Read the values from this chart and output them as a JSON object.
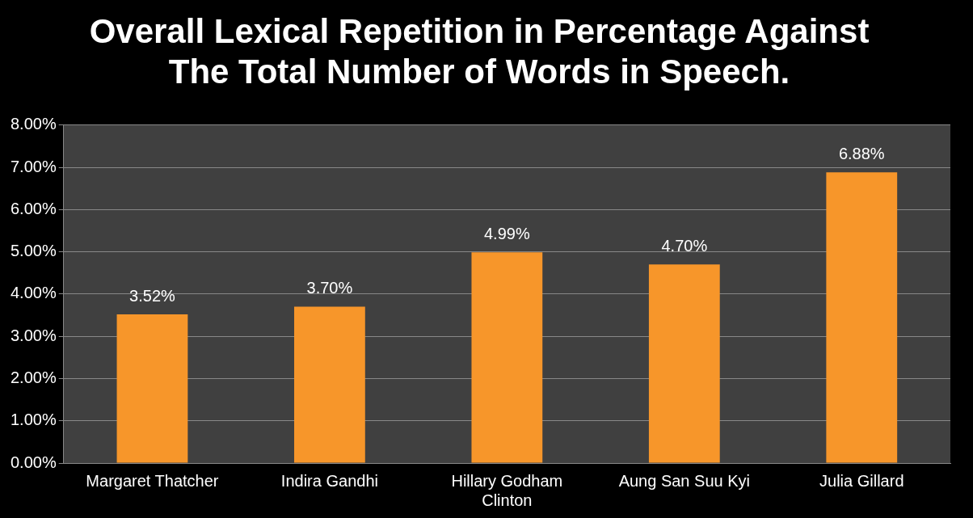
{
  "chart_data": {
    "type": "bar",
    "title": "Overall Lexical Repetition in Percentage Against The Total Number of Words in Speech.",
    "categories": [
      "Margaret Thatcher",
      "Indira Gandhi",
      "Hillary Godham Clinton",
      "Aung San Suu Kyi",
      "Julia Gillard"
    ],
    "values": [
      3.52,
      3.7,
      4.99,
      4.7,
      6.88
    ],
    "value_labels": [
      "3.52%",
      "3.70%",
      "4.99%",
      "4.70%",
      "6.88%"
    ],
    "color": "#f7962a",
    "ylim": [
      0,
      8
    ],
    "yticks": [
      {
        "value": 0,
        "label": "0.00%"
      },
      {
        "value": 1,
        "label": "1.00%"
      },
      {
        "value": 2,
        "label": "2.00%"
      },
      {
        "value": 3,
        "label": "3.00%"
      },
      {
        "value": 4,
        "label": "4.00%"
      },
      {
        "value": 5,
        "label": "5.00%"
      },
      {
        "value": 6,
        "label": "6.00%"
      },
      {
        "value": 7,
        "label": "7.00%"
      },
      {
        "value": 8,
        "label": "8.00%"
      }
    ],
    "grid": "y",
    "legend": false
  }
}
